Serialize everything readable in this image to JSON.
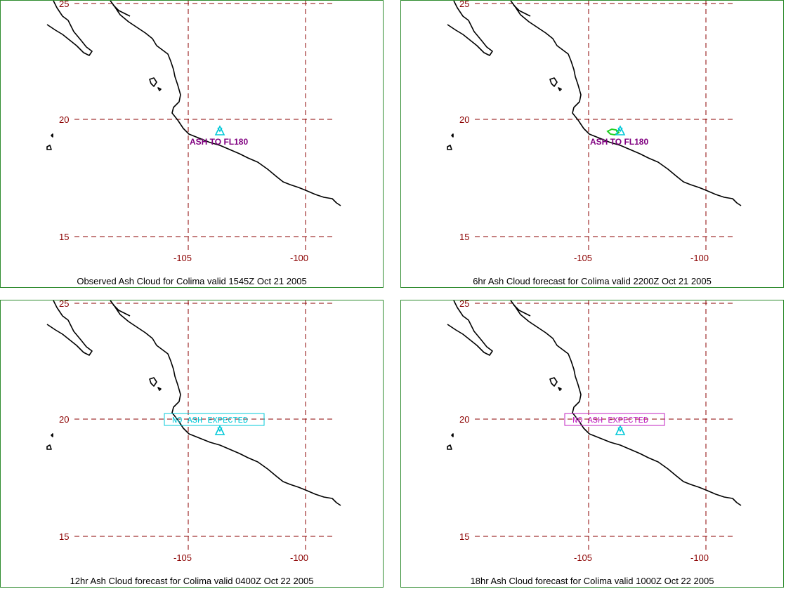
{
  "panels": [
    {
      "id": "p1",
      "caption": "Observed Ash Cloud for Colima valid 1545Z Oct 21 2005",
      "annotation": "ASH TO FL180",
      "annotation_type": "label",
      "ash_cloud": false
    },
    {
      "id": "p2",
      "caption": "6hr Ash Cloud forecast for Colima valid 2200Z Oct 21 2005",
      "annotation": "ASH TO FL180",
      "annotation_type": "label",
      "ash_cloud": true
    },
    {
      "id": "p3",
      "caption": "12hr Ash Cloud forecast for Colima valid 0400Z Oct 22 2005",
      "annotation": "NO ASH EXPECTED",
      "annotation_type": "box",
      "box_color": "#00c8d8"
    },
    {
      "id": "p4",
      "caption": "18hr Ash Cloud forecast for Colima valid 1000Z Oct 22 2005",
      "annotation": "NO ASH EXPECTED",
      "annotation_type": "box",
      "box_color": "#c020c0"
    }
  ],
  "lat_labels": [
    "25",
    "20",
    "15"
  ],
  "lon_labels": [
    "-105",
    "-100"
  ],
  "colors": {
    "grid": "#8b0000",
    "coast": "#000000",
    "volcano": "#00c8d8",
    "ash_label": "#800080",
    "ash_cloud": "#20d020",
    "border": "#2e8b2e"
  },
  "icons": {
    "volcano": "volcano-icon"
  }
}
